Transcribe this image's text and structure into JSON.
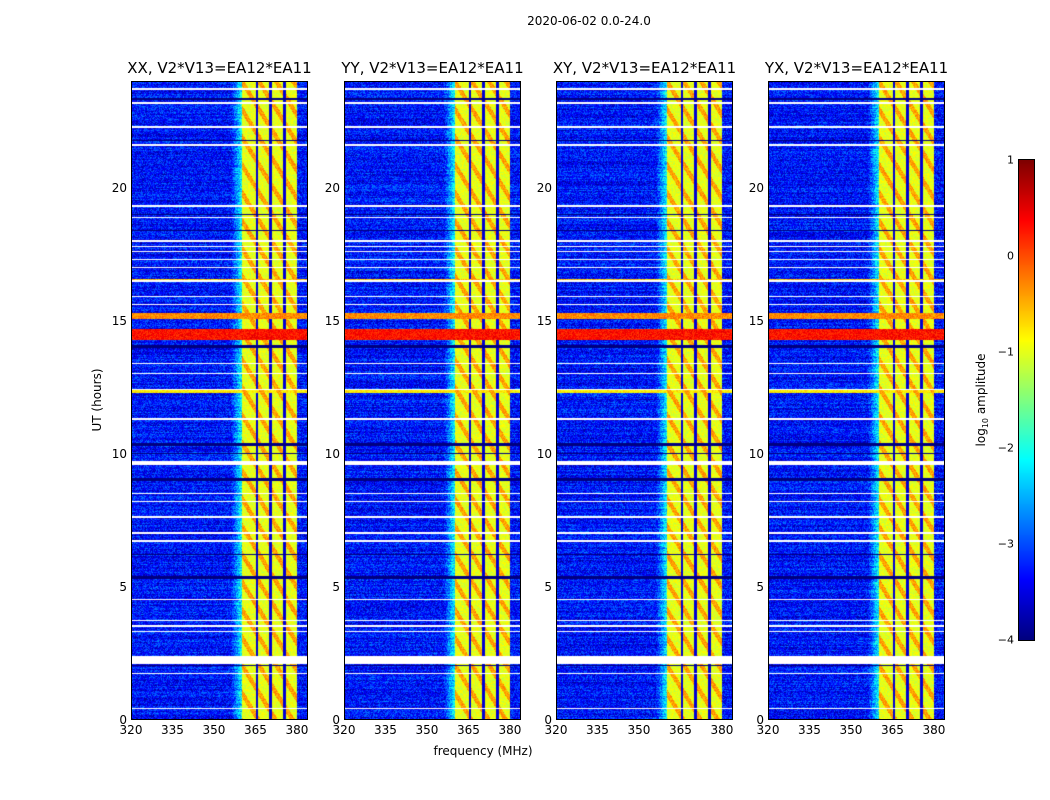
{
  "chart_data": {
    "type": "heatmap",
    "title": "2020-06-02 0.0-24.0",
    "xlabel": "frequency (MHz)",
    "ylabel": "UT (hours)",
    "xlim": [
      320,
      384
    ],
    "ylim": [
      0,
      24
    ],
    "xticks": [
      "320",
      "335",
      "350",
      "365",
      "380"
    ],
    "yticks": [
      "0",
      "5",
      "10",
      "15",
      "20"
    ],
    "panels": [
      {
        "title": "XX, V2*V13=EA12*EA11"
      },
      {
        "title": "YY, V2*V13=EA12*EA11"
      },
      {
        "title": "XY, V2*V13=EA12*EA11"
      },
      {
        "title": "YX, V2*V13=EA12*EA11"
      }
    ],
    "colorbar": {
      "label": "log10 amplitude",
      "label_main": "log",
      "label_sub": "10",
      "label_rest": " amplitude",
      "range": [
        -4,
        1
      ],
      "ticks": [
        "1",
        "0",
        "−1",
        "−2",
        "−3",
        "−4"
      ],
      "colormap": "jet"
    },
    "background_level": -3.3,
    "band": {
      "range_mhz": [
        360,
        380
      ],
      "level": -1.0,
      "gaps_mhz": [
        365.5,
        370.5,
        375.5
      ]
    },
    "flagged_white_hours": [
      [
        23.7,
        23.8
      ],
      [
        23.2,
        23.25
      ],
      [
        22.3,
        22.35
      ],
      [
        21.6,
        21.7
      ],
      [
        19.3,
        19.4
      ],
      [
        18.9,
        18.95
      ],
      [
        18.0,
        18.05
      ],
      [
        17.8,
        17.85
      ],
      [
        17.6,
        17.65
      ],
      [
        17.3,
        17.35
      ],
      [
        17.0,
        17.05
      ],
      [
        16.5,
        16.55
      ],
      [
        15.9,
        15.95
      ],
      [
        15.6,
        15.65
      ],
      [
        13.4,
        13.45
      ],
      [
        13.0,
        13.05
      ],
      [
        12.4,
        12.45
      ],
      [
        11.3,
        11.35
      ],
      [
        9.6,
        9.75
      ],
      [
        8.5,
        8.55
      ],
      [
        8.2,
        8.25
      ],
      [
        7.6,
        7.65
      ],
      [
        7.0,
        7.05
      ],
      [
        6.7,
        6.75
      ],
      [
        4.5,
        4.55
      ],
      [
        3.7,
        3.75
      ],
      [
        3.5,
        3.55
      ],
      [
        3.3,
        3.35
      ],
      [
        2.1,
        2.4
      ],
      [
        1.7,
        1.75
      ],
      [
        0.4,
        0.45
      ]
    ],
    "flagged_black_hours": [
      [
        23.35,
        23.4
      ],
      [
        21.8,
        21.85
      ],
      [
        19.0,
        19.05
      ],
      [
        18.4,
        18.45
      ],
      [
        14.0,
        14.1
      ],
      [
        10.3,
        10.4
      ],
      [
        10.0,
        10.05
      ],
      [
        9.0,
        9.1
      ],
      [
        6.2,
        6.25
      ],
      [
        5.3,
        5.4
      ],
      [
        2.0,
        2.05
      ]
    ],
    "rfi_hours": [
      [
        14.3,
        14.7,
        0.3
      ],
      [
        15.1,
        15.3,
        -0.3
      ],
      [
        12.3,
        12.4,
        -0.8
      ],
      [
        16.5,
        16.6,
        -0.6
      ]
    ]
  }
}
